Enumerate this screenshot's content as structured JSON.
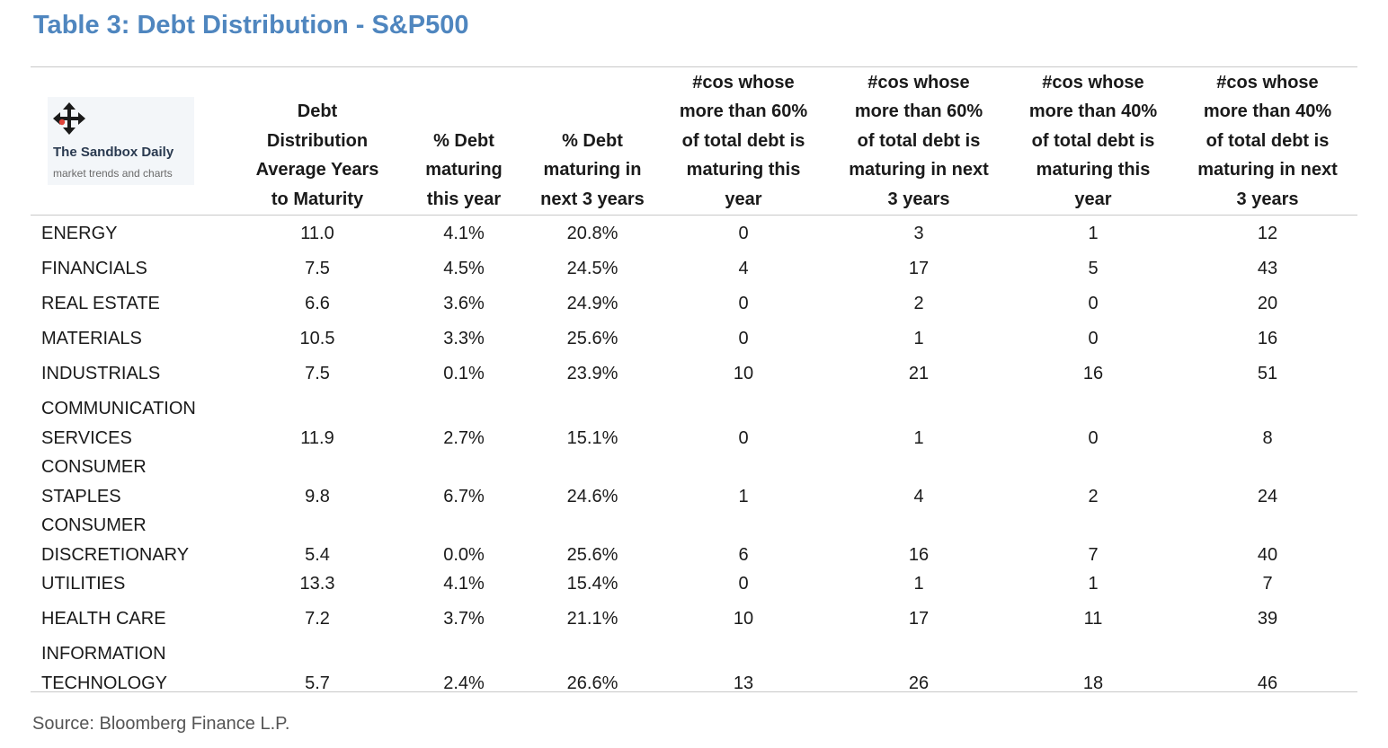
{
  "title": "Table 3: Debt Distribution - S&P500",
  "logo": {
    "icon": "move-arrows-icon",
    "name": "The Sandbox Daily",
    "tagline": "market trends and charts"
  },
  "source": "Source: Bloomberg Finance L.P.",
  "colors": {
    "title": "#4f86bf",
    "rule": "#c8c8c8",
    "logo_bg": "#f3f6f9",
    "logo_arrow": "#1a1a1a",
    "logo_dot": "#e0443a"
  },
  "chart_data": {
    "type": "table",
    "title": "Table 3: Debt Distribution - S&P500",
    "columns": [
      {
        "lines": [
          "Debt",
          "Distribution",
          "Average Years",
          "to Maturity"
        ]
      },
      {
        "lines": [
          "% Debt",
          "maturing",
          "this year"
        ]
      },
      {
        "lines": [
          "% Debt",
          "maturing in",
          "next 3 years"
        ]
      },
      {
        "lines": [
          "#cos whose",
          "more than 60%",
          "of total debt is",
          "maturing this",
          "year"
        ]
      },
      {
        "lines": [
          "#cos whose",
          "more than 60%",
          "of total debt is",
          "maturing in next",
          "3 years"
        ]
      },
      {
        "lines": [
          "#cos whose",
          "more than 40%",
          "of total debt is",
          "maturing this",
          "year"
        ]
      },
      {
        "lines": [
          "#cos whose",
          "more than 40%",
          "of total debt is",
          "maturing in next",
          "3 years"
        ]
      }
    ],
    "rows": [
      {
        "label": [
          "ENERGY"
        ],
        "values": [
          "11.0",
          "4.1%",
          "20.8%",
          "0",
          "3",
          "1",
          "12"
        ]
      },
      {
        "label": [
          "FINANCIALS"
        ],
        "values": [
          "7.5",
          "4.5%",
          "24.5%",
          "4",
          "17",
          "5",
          "43"
        ]
      },
      {
        "label": [
          "REAL ESTATE"
        ],
        "values": [
          "6.6",
          "3.6%",
          "24.9%",
          "0",
          "2",
          "0",
          "20"
        ]
      },
      {
        "label": [
          "MATERIALS"
        ],
        "values": [
          "10.5",
          "3.3%",
          "25.6%",
          "0",
          "1",
          "0",
          "16"
        ]
      },
      {
        "label": [
          "INDUSTRIALS"
        ],
        "values": [
          "7.5",
          "0.1%",
          "23.9%",
          "10",
          "21",
          "16",
          "51"
        ]
      },
      {
        "label": [
          "COMMUNICATION",
          "SERVICES"
        ],
        "values": [
          "11.9",
          "2.7%",
          "15.1%",
          "0",
          "1",
          "0",
          "8"
        ]
      },
      {
        "label": [
          "CONSUMER",
          "STAPLES"
        ],
        "values": [
          "9.8",
          "6.7%",
          "24.6%",
          "1",
          "4",
          "2",
          "24"
        ]
      },
      {
        "label": [
          "CONSUMER",
          "DISCRETIONARY"
        ],
        "values": [
          "5.4",
          "0.0%",
          "25.6%",
          "6",
          "16",
          "7",
          "40"
        ]
      },
      {
        "label": [
          "UTILITIES"
        ],
        "values": [
          "13.3",
          "4.1%",
          "15.4%",
          "0",
          "1",
          "1",
          "7"
        ]
      },
      {
        "label": [
          "HEALTH CARE"
        ],
        "values": [
          "7.2",
          "3.7%",
          "21.1%",
          "10",
          "17",
          "11",
          "39"
        ]
      },
      {
        "label": [
          "INFORMATION",
          "TECHNOLOGY"
        ],
        "values": [
          "5.7",
          "2.4%",
          "26.6%",
          "13",
          "26",
          "18",
          "46"
        ]
      }
    ]
  }
}
